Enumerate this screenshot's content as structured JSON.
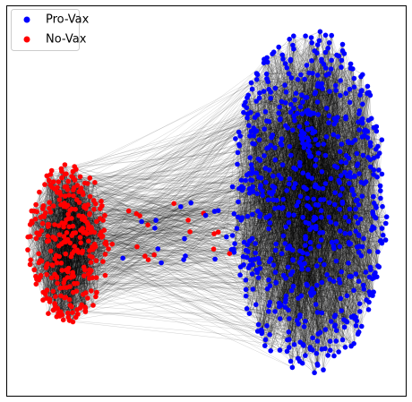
{
  "legend": {
    "items": [
      {
        "label": "Pro-Vax",
        "color": "#0000ff"
      },
      {
        "label": "No-Vax",
        "color": "#ff0000"
      }
    ]
  }
}
